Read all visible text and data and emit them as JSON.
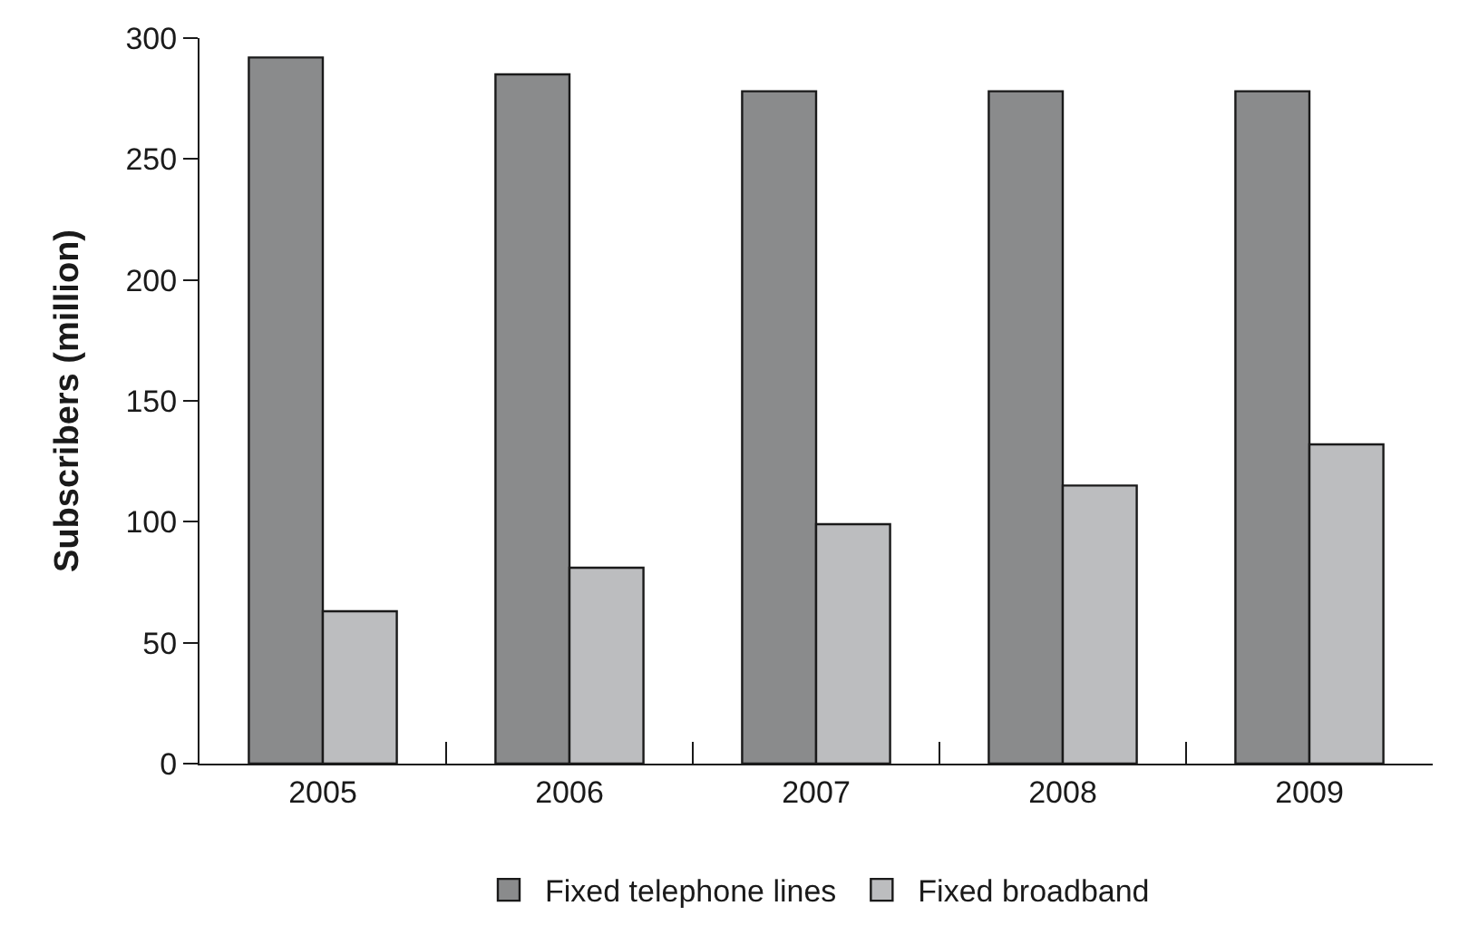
{
  "chart_data": {
    "type": "bar",
    "ylabel": "Subscribers (million)",
    "categories": [
      "2005",
      "2006",
      "2007",
      "2008",
      "2009"
    ],
    "series": [
      {
        "name": "Fixed telephone lines",
        "color": "#8a8b8c",
        "values": [
          292,
          285,
          278,
          278,
          278
        ]
      },
      {
        "name": "Fixed broadband",
        "color": "#bcbdbf",
        "values": [
          63,
          81,
          99,
          115,
          132
        ]
      }
    ],
    "ylim": [
      0,
      300
    ],
    "yticks": [
      0,
      50,
      100,
      150,
      200,
      250,
      300
    ],
    "legend": "bottom"
  }
}
